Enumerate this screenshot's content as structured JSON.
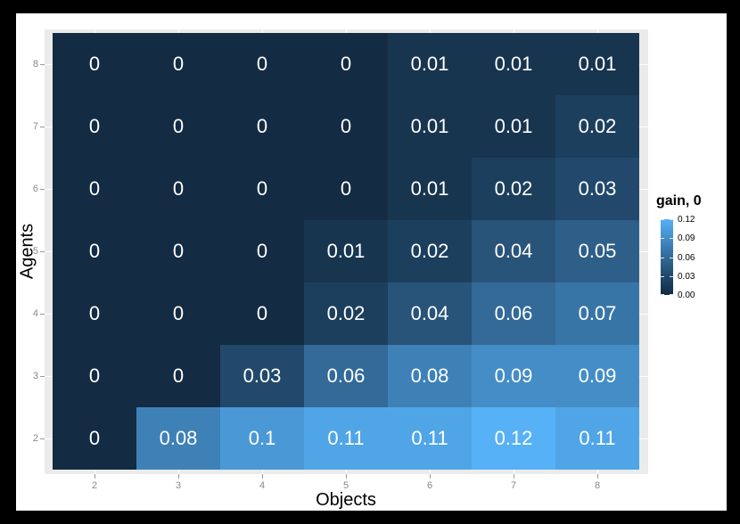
{
  "chart_data": {
    "type": "heatmap",
    "title": "",
    "xlabel": "Objects",
    "ylabel": "Agents",
    "x_ticks": [
      "2",
      "3",
      "4",
      "5",
      "6",
      "7",
      "8"
    ],
    "y_ticks": [
      "8",
      "7",
      "6",
      "5",
      "4",
      "3",
      "2"
    ],
    "rows_order_note": "rows listed top-to-bottom: Agents 8 down to 2; columns left-to-right: Objects 2 to 8",
    "values": [
      [
        0,
        0,
        0,
        0,
        0.01,
        0.01,
        0.01
      ],
      [
        0,
        0,
        0,
        0,
        0.01,
        0.01,
        0.02
      ],
      [
        0,
        0,
        0,
        0,
        0.01,
        0.02,
        0.03
      ],
      [
        0,
        0,
        0,
        0.01,
        0.02,
        0.04,
        0.05
      ],
      [
        0,
        0,
        0,
        0.02,
        0.04,
        0.06,
        0.07
      ],
      [
        0,
        0,
        0.03,
        0.06,
        0.08,
        0.09,
        0.09
      ],
      [
        0,
        0.08,
        0.1,
        0.11,
        0.11,
        0.12,
        0.11
      ]
    ],
    "cell_labels": [
      [
        "0",
        "0",
        "0",
        "0",
        "0.01",
        "0.01",
        "0.01"
      ],
      [
        "0",
        "0",
        "0",
        "0",
        "0.01",
        "0.01",
        "0.02"
      ],
      [
        "0",
        "0",
        "0",
        "0",
        "0.01",
        "0.02",
        "0.03"
      ],
      [
        "0",
        "0",
        "0",
        "0.01",
        "0.02",
        "0.04",
        "0.05"
      ],
      [
        "0",
        "0",
        "0",
        "0.02",
        "0.04",
        "0.06",
        "0.07"
      ],
      [
        "0",
        "0",
        "0.03",
        "0.06",
        "0.08",
        "0.09",
        "0.09"
      ],
      [
        "0",
        "0.08",
        "0.1",
        "0.11",
        "0.11",
        "0.12",
        "0.11"
      ]
    ],
    "legend": {
      "title": "gain, 0",
      "tick_labels": [
        "0.12",
        "0.09",
        "0.06",
        "0.03",
        "0.00"
      ],
      "tick_values": [
        0.12,
        0.09,
        0.06,
        0.03,
        0.0
      ],
      "domain": [
        0,
        0.12
      ],
      "low_color": "#132B43",
      "high_color": "#56B1F7",
      "position": "right"
    },
    "panel_bg": "#EBEBEB",
    "grid": "major-stubs-visible-in-margins",
    "cell_text_color": "#FFFFFF"
  }
}
